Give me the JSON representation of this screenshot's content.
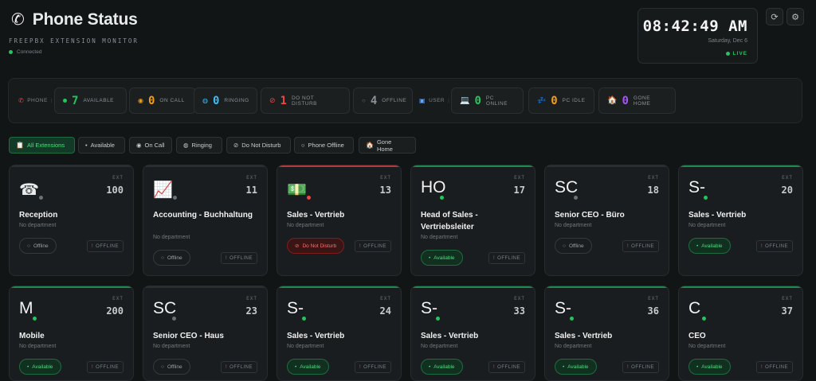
{
  "header": {
    "title": "Phone Status",
    "phone_icon": "phone-icon",
    "subtitle": "FREEPBX EXTENSION MONITOR",
    "connection": "Connected"
  },
  "clock": {
    "time": "08:42:49 AM",
    "date": "Saturday, Dec 6",
    "live": "LIVE"
  },
  "toolbar": {
    "refresh_icon": "refresh-icon",
    "settings_icon": "gear-icon"
  },
  "stats": {
    "phone_label": "PHONE",
    "user_label": "USER",
    "available": {
      "count": "7",
      "label": "AVAILABLE"
    },
    "on_call": {
      "count": "0",
      "label": "ON CALL"
    },
    "ringing": {
      "count": "0",
      "label": "RINGING"
    },
    "dnd": {
      "count": "1",
      "label": "DO NOT DISTURB"
    },
    "offline": {
      "count": "4",
      "label": "OFFLINE"
    },
    "pc_online": {
      "count": "0",
      "label": "PC ONLINE"
    },
    "pc_idle": {
      "count": "0",
      "label": "PC IDLE"
    },
    "gone_home": {
      "count": "0",
      "label": "GONE HOME"
    }
  },
  "filters": [
    "All Extensions",
    "Available",
    "On Call",
    "Ringing",
    "Do Not Disturb",
    "Phone Offline",
    "Gone Home"
  ],
  "cards": [
    {
      "avatar": "☎",
      "ext_label": "EXT",
      "ext": "100",
      "name": "Reception",
      "dept": "No department",
      "status": "Offline",
      "phone": "OFFLINE"
    },
    {
      "avatar": "📈",
      "ext_label": "EXT",
      "ext": "11",
      "name": "Accounting - Buchhaltung",
      "dept": "No department",
      "status": "Offline",
      "phone": "OFFLINE"
    },
    {
      "avatar": "💵",
      "ext_label": "EXT",
      "ext": "13",
      "name": "Sales - Vertrieb",
      "dept": "No department",
      "status": "Do Not Disturb",
      "phone": "OFFLINE"
    },
    {
      "avatar": "HO",
      "ext_label": "EXT",
      "ext": "17",
      "name": "Head of Sales - Vertriebsleiter",
      "dept": "No department",
      "status": "Available",
      "phone": "OFFLINE"
    },
    {
      "avatar": "SC",
      "ext_label": "EXT",
      "ext": "18",
      "name": "Senior CEO - Büro",
      "dept": "No department",
      "status": "Offline",
      "phone": "OFFLINE"
    },
    {
      "avatar": "S-",
      "ext_label": "EXT",
      "ext": "20",
      "name": "Sales - Vertrieb",
      "dept": "No department",
      "status": "Available",
      "phone": "OFFLINE"
    },
    {
      "avatar": "M",
      "ext_label": "EXT",
      "ext": "200",
      "name": "Mobile",
      "dept": "No department",
      "status": "Available",
      "phone": "OFFLINE"
    },
    {
      "avatar": "SC",
      "ext_label": "EXT",
      "ext": "23",
      "name": "Senior CEO - Haus",
      "dept": "No department",
      "status": "Offline",
      "phone": "OFFLINE"
    },
    {
      "avatar": "S-",
      "ext_label": "EXT",
      "ext": "24",
      "name": "Sales - Vertrieb",
      "dept": "No department",
      "status": "Available",
      "phone": "OFFLINE"
    },
    {
      "avatar": "S-",
      "ext_label": "EXT",
      "ext": "33",
      "name": "Sales - Vertrieb",
      "dept": "No department",
      "status": "Available",
      "phone": "OFFLINE"
    },
    {
      "avatar": "S-",
      "ext_label": "EXT",
      "ext": "36",
      "name": "Sales - Vertrieb",
      "dept": "No department",
      "status": "Available",
      "phone": "OFFLINE"
    },
    {
      "avatar": "C",
      "ext_label": "EXT",
      "ext": "37",
      "name": "CEO",
      "dept": "No department",
      "status": "Available",
      "phone": "OFFLINE"
    }
  ],
  "colors": {
    "background": "#121516",
    "available": "#22c55e",
    "dnd": "#ef4444",
    "offline": "#6b7176",
    "on_call": "#f59e0b",
    "ringing": "#38bdf8",
    "gone_home": "#a855f7"
  }
}
